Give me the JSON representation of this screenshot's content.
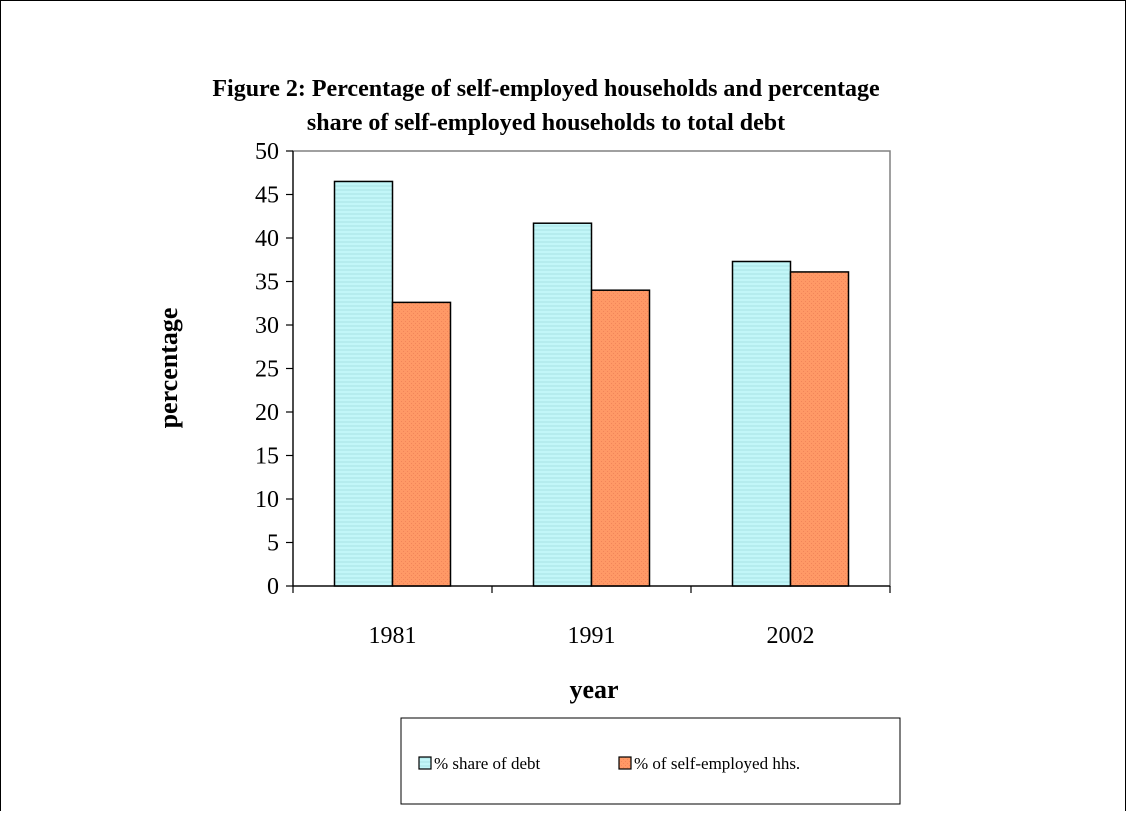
{
  "chart_data": {
    "type": "bar",
    "title": "Figure 2: Percentage of self-employed households and percentage",
    "subtitle": "share of self-employed households to total debt",
    "xlabel": "year",
    "ylabel": "percentage",
    "categories": [
      "1981",
      "1991",
      "2002"
    ],
    "series": [
      {
        "name": "% share of debt",
        "values": [
          46.5,
          41.7,
          37.3
        ],
        "color": "#ccffff"
      },
      {
        "name": "% of self-employed hhs.",
        "values": [
          32.6,
          34.0,
          36.1
        ],
        "color": "#ff9966"
      }
    ],
    "ylim": [
      0,
      50
    ],
    "yticks": [
      "0",
      "5",
      "10",
      "15",
      "20",
      "25",
      "30",
      "35",
      "40",
      "45",
      "50"
    ],
    "grid": false,
    "legend_position": "bottom"
  }
}
